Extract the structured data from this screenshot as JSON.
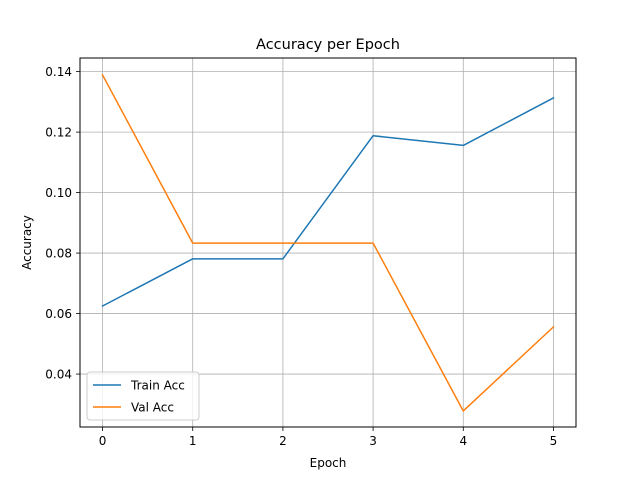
{
  "chart_data": {
    "type": "line",
    "title": "Accuracy per Epoch",
    "xlabel": "Epoch",
    "ylabel": "Accuracy",
    "x": [
      0,
      1,
      2,
      3,
      4,
      5
    ],
    "x_ticks": [
      "0",
      "1",
      "2",
      "3",
      "4",
      "5"
    ],
    "xlim": [
      -0.25,
      5.25
    ],
    "ylim": [
      0.0225,
      0.1445
    ],
    "y_ticks": [
      "0.04",
      "0.06",
      "0.08",
      "0.10",
      "0.12",
      "0.14"
    ],
    "y_tick_values": [
      0.04,
      0.06,
      0.08,
      0.1,
      0.12,
      0.14
    ],
    "grid": true,
    "legend_position": "lower-left",
    "series": [
      {
        "name": "Train Acc",
        "color": "#1f77b4",
        "values": [
          0.0625,
          0.0781,
          0.0781,
          0.1188,
          0.1156,
          0.1313
        ]
      },
      {
        "name": "Val Acc",
        "color": "#ff7f0e",
        "values": [
          0.1389,
          0.0833,
          0.0833,
          0.0833,
          0.0278,
          0.0556
        ]
      }
    ]
  }
}
